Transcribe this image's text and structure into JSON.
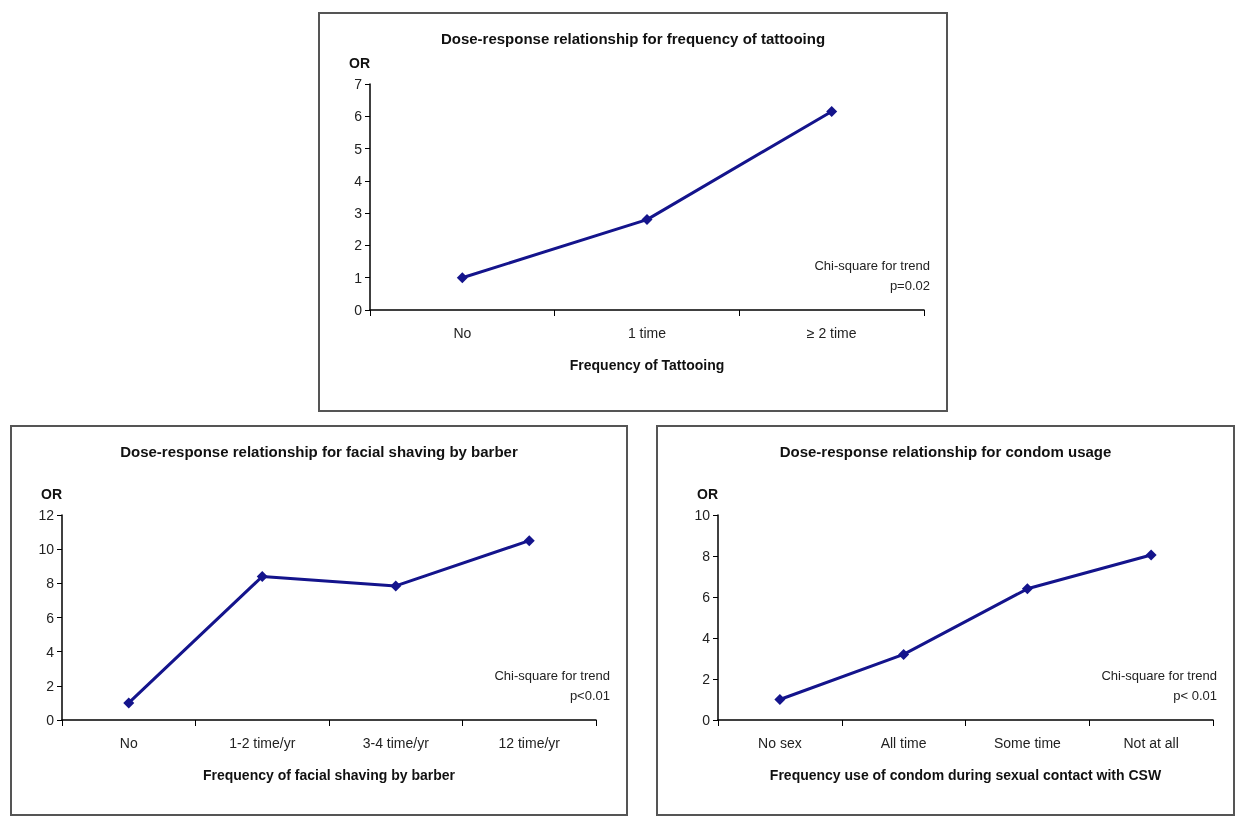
{
  "chart_data": [
    {
      "type": "line",
      "title": "Dose-response relationship for frequency of tattooing",
      "xlabel": "Frequency of Tattooing",
      "ylabel": "OR",
      "categories": [
        "No",
        "1 time",
        "≥ 2 time"
      ],
      "series": [
        {
          "color": "#14148c",
          "values": [
            1,
            2.8,
            6.15
          ]
        }
      ],
      "ylim": [
        0,
        7
      ],
      "yticks": [
        0,
        1,
        2,
        3,
        4,
        5,
        6,
        7
      ],
      "annotations": [
        "Chi-square for trend",
        "p=0.02"
      ],
      "grid": false,
      "marker": "diamond",
      "line_style": "solid"
    },
    {
      "type": "line",
      "title": "Dose-response relationship for facial shaving by barber",
      "xlabel": "Frequency of facial shaving by barber",
      "ylabel": "OR",
      "categories": [
        "No",
        "1-2 time/yr",
        "3-4 time/yr",
        "12 time/yr"
      ],
      "series": [
        {
          "color": "#14148c",
          "values": [
            1,
            8.4,
            7.85,
            10.5
          ]
        }
      ],
      "ylim": [
        0,
        12
      ],
      "yticks": [
        0,
        2,
        4,
        6,
        8,
        10,
        12
      ],
      "annotations": [
        "Chi-square for trend",
        "p<0.01"
      ],
      "grid": false,
      "marker": "diamond",
      "line_style": "solid"
    },
    {
      "type": "line",
      "title": "Dose-response relationship for condom usage",
      "xlabel": "Frequency use of condom during sexual contact with CSW",
      "ylabel": "OR",
      "categories": [
        "No sex",
        "All time",
        "Some time",
        "Not at all"
      ],
      "series": [
        {
          "color": "#14148c",
          "values": [
            1,
            3.2,
            6.4,
            8.05
          ]
        }
      ],
      "ylim": [
        0,
        10
      ],
      "yticks": [
        0,
        2,
        4,
        6,
        8,
        10
      ],
      "annotations": [
        "Chi-square for trend",
        "p< 0.01"
      ],
      "grid": false,
      "marker": "diamond",
      "line_style": "solid"
    }
  ]
}
